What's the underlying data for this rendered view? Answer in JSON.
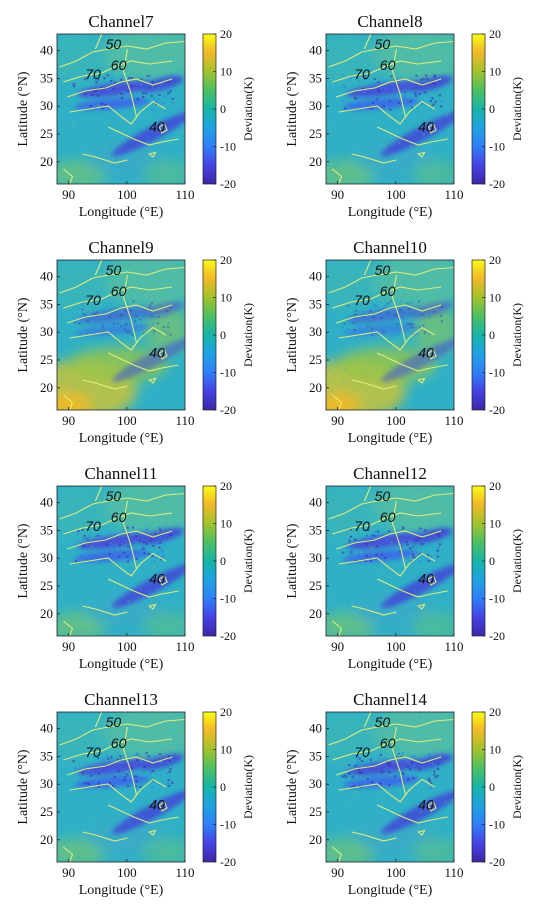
{
  "chart_data": {
    "type": "heatmap",
    "colorbar": {
      "label": "Deviation(K)",
      "range": [
        -20,
        20
      ],
      "ticks": [
        20,
        10,
        0,
        -10,
        -20
      ],
      "colormap": "parula"
    },
    "axes": {
      "xlabel": "Longitude (°E)",
      "ylabel": "Latitude (°N)",
      "xlim": [
        88,
        110
      ],
      "ylim": [
        16,
        43
      ],
      "xticks": [
        90,
        100,
        110
      ],
      "yticks": [
        40,
        35,
        30,
        25,
        20
      ]
    },
    "contour_labels": [
      "50",
      "60",
      "70",
      "40"
    ],
    "colors": {
      "low": "#3e26a8",
      "mid": "#17b4a9",
      "high": "#f9fb15",
      "contour": "#e6ef7a"
    },
    "panels": [
      {
        "title": "Channel7",
        "pattern": "negative-band"
      },
      {
        "title": "Channel8",
        "pattern": "negative-band"
      },
      {
        "title": "Channel9",
        "pattern": "warm-southwest"
      },
      {
        "title": "Channel10",
        "pattern": "warm-southwest"
      },
      {
        "title": "Channel11",
        "pattern": "negative-band"
      },
      {
        "title": "Channel12",
        "pattern": "negative-band"
      },
      {
        "title": "Channel13",
        "pattern": "negative-band"
      },
      {
        "title": "Channel14",
        "pattern": "negative-band"
      }
    ]
  }
}
